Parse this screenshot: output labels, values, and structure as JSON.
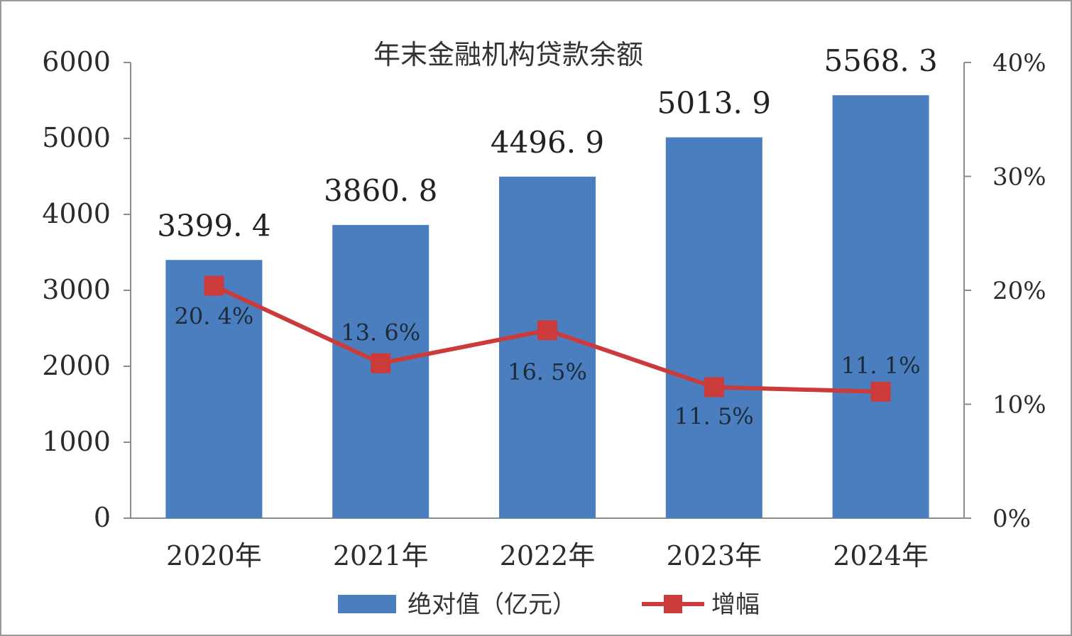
{
  "chart_data": {
    "type": "bar",
    "title": "年末金融机构贷款余额",
    "categories": [
      "2020年",
      "2021年",
      "2022年",
      "2023年",
      "2024年"
    ],
    "series": [
      {
        "name": "绝对值（亿元）",
        "type": "bar",
        "axis": "left",
        "values": [
          3399.4,
          3860.8,
          4496.9,
          5013.9,
          5568.3
        ],
        "labels": [
          "3399. 4",
          "3860. 8",
          "4496. 9",
          "5013. 9",
          "5568. 3"
        ]
      },
      {
        "name": "增幅",
        "type": "line",
        "axis": "right",
        "values": [
          20.4,
          13.6,
          16.5,
          11.5,
          11.1
        ],
        "labels": [
          "20. 4%",
          "13. 6%",
          "16. 5%",
          "11. 5%",
          "11. 1%"
        ]
      }
    ],
    "y_left": {
      "min": 0,
      "max": 6000,
      "ticks": [
        "0",
        "1000",
        "2000",
        "3000",
        "4000",
        "5000",
        "6000"
      ]
    },
    "y_right": {
      "min": 0,
      "max": 40,
      "ticks": [
        "0%",
        "10%",
        "20%",
        "30%",
        "40%"
      ]
    },
    "legend_position": "bottom",
    "grid": false,
    "colors": {
      "bar": "#4a7ebf",
      "line": "#cc3b3b"
    }
  }
}
